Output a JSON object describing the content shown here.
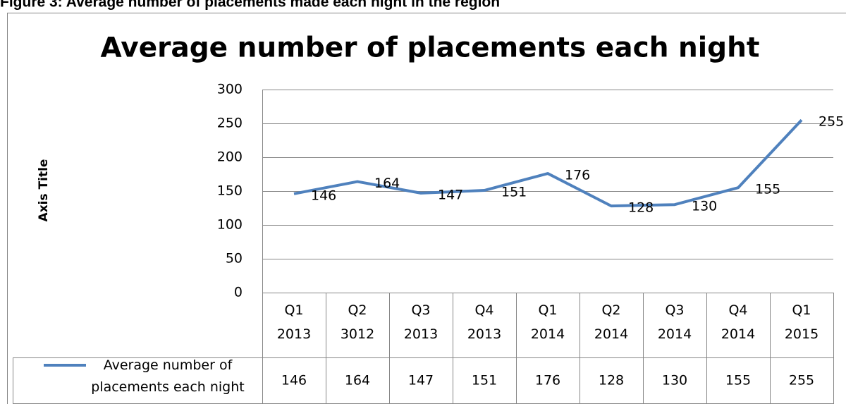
{
  "caption": "Figure 3: Average number of placements made each night in the region",
  "chart_data": {
    "type": "line",
    "title": "Average number of placements each night",
    "y_label": "Axis Title",
    "categories": [
      "Q1 2013",
      "Q2 3012",
      "Q3 2013",
      "Q4 2013",
      "Q1 2014",
      "Q2 2014",
      "Q3 2014",
      "Q4 2014",
      "Q1 2015"
    ],
    "series": [
      {
        "name": "Average number of placements each night",
        "color": "#4f81bd",
        "values": [
          146,
          164,
          147,
          151,
          176,
          128,
          130,
          155,
          255
        ]
      }
    ],
    "ylim": [
      0,
      300
    ],
    "yticks": [
      0,
      50,
      100,
      150,
      200,
      250,
      300
    ],
    "grid": true,
    "data_table": true
  }
}
